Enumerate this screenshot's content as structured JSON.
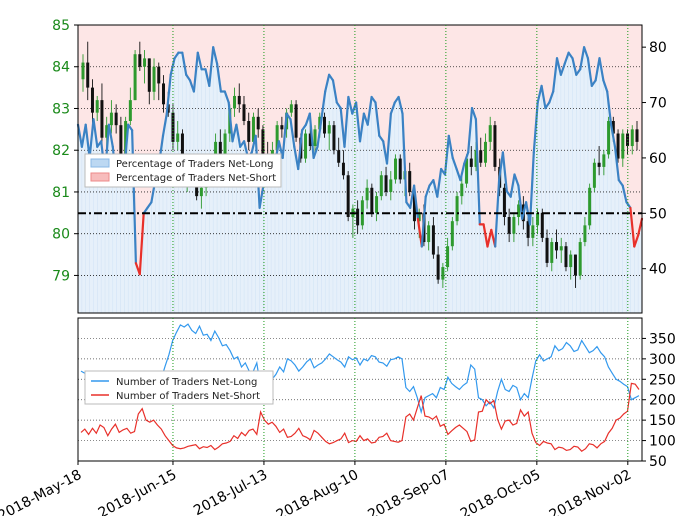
{
  "chart_data": [
    {
      "type": "candlestick+line",
      "panel": "top",
      "left_axis": {
        "range": [
          78.1,
          85.0
        ],
        "ticks": [
          "85",
          "84",
          "83",
          "82",
          "81",
          "80",
          "79"
        ],
        "color": "#1a8a1a"
      },
      "right_axis": {
        "range": [
          32,
          84
        ],
        "ticks": [
          "80",
          "70",
          "60",
          "50",
          "40"
        ]
      },
      "reference_line": 50,
      "legend": {
        "position": "center-left",
        "entries": [
          "Percentage of Traders Net-Long",
          "Percentage of Traders Net-Short"
        ]
      },
      "net_long_pct": [
        66,
        62,
        66,
        60,
        67,
        62,
        63,
        57,
        66,
        62,
        55,
        59,
        58,
        66,
        65,
        41,
        39,
        50,
        51,
        52,
        56,
        59,
        64,
        68,
        75,
        78,
        79,
        79,
        75,
        74,
        72,
        79,
        76,
        76,
        73,
        80,
        77,
        72,
        72,
        70,
        63,
        66,
        62,
        63,
        60,
        61,
        64,
        51,
        55,
        58,
        56,
        59,
        63,
        60,
        68,
        67,
        62,
        58,
        65,
        66,
        68,
        60,
        62,
        67,
        72,
        75,
        74,
        70,
        69,
        62,
        71,
        68,
        70,
        63,
        68,
        66,
        71,
        70,
        64,
        63,
        59,
        68,
        70,
        71,
        68,
        52,
        51,
        55,
        49,
        44,
        53,
        55,
        56,
        53,
        58,
        57,
        64,
        60,
        58,
        56,
        59,
        61,
        69,
        67,
        48,
        48,
        44,
        47,
        44,
        56,
        61,
        54,
        53,
        57,
        55,
        49,
        52,
        48,
        61,
        70,
        73,
        69,
        70,
        72,
        78,
        75,
        77,
        79,
        78,
        75,
        76,
        80,
        78,
        73,
        74,
        78,
        74,
        72,
        66,
        62,
        56,
        55,
        52,
        51,
        44,
        46,
        49
      ],
      "candles": [
        [
          83.7,
          84.3,
          83.4,
          84.1
        ],
        [
          84.1,
          84.6,
          83.2,
          83.5
        ],
        [
          83.5,
          83.7,
          82.6,
          82.9
        ],
        [
          82.9,
          83.3,
          82.7,
          83.2
        ],
        [
          83.2,
          83.6,
          82.0,
          82.3
        ],
        [
          82.3,
          82.8,
          81.9,
          82.6
        ],
        [
          82.6,
          83.2,
          82.4,
          82.9
        ],
        [
          82.9,
          83.1,
          82.4,
          82.6
        ],
        [
          82.6,
          82.8,
          81.6,
          81.7
        ],
        [
          81.7,
          82.8,
          81.6,
          82.7
        ],
        [
          82.7,
          83.5,
          82.6,
          83.2
        ],
        [
          83.2,
          84.4,
          83.2,
          84.3
        ],
        [
          84.3,
          84.6,
          83.9,
          84.0
        ],
        [
          84.0,
          84.4,
          83.6,
          84.2
        ],
        [
          84.2,
          84.2,
          83.1,
          83.4
        ],
        [
          83.4,
          84.2,
          83.2,
          84.0
        ],
        [
          84.0,
          84.1,
          83.2,
          83.6
        ],
        [
          83.6,
          83.8,
          82.9,
          83.1
        ],
        [
          83.1,
          83.4,
          82.8,
          82.9
        ],
        [
          82.9,
          83.1,
          82.0,
          82.2
        ],
        [
          82.2,
          82.7,
          82.0,
          82.4
        ],
        [
          82.4,
          82.5,
          81.4,
          81.5
        ],
        [
          81.5,
          81.9,
          81.0,
          81.6
        ],
        [
          81.6,
          81.9,
          81.2,
          81.4
        ],
        [
          81.4,
          81.9,
          80.8,
          80.9
        ],
        [
          80.9,
          81.2,
          80.6,
          81.1
        ],
        [
          81.1,
          81.6,
          80.9,
          81.3
        ],
        [
          81.3,
          81.8,
          81.2,
          81.6
        ],
        [
          81.6,
          82.4,
          81.5,
          82.2
        ],
        [
          82.2,
          82.5,
          81.7,
          81.9
        ],
        [
          81.9,
          82.5,
          81.8,
          82.4
        ],
        [
          82.4,
          83.1,
          82.2,
          83.0
        ],
        [
          83.0,
          83.5,
          82.8,
          83.3
        ],
        [
          83.3,
          83.6,
          82.9,
          83.1
        ],
        [
          83.1,
          83.3,
          82.6,
          82.7
        ],
        [
          82.7,
          82.9,
          82.0,
          82.2
        ],
        [
          82.2,
          82.9,
          82.1,
          82.8
        ],
        [
          82.8,
          83.0,
          82.3,
          82.5
        ],
        [
          82.5,
          82.6,
          81.8,
          81.9
        ],
        [
          81.9,
          82.2,
          81.5,
          81.6
        ],
        [
          81.6,
          82.2,
          81.5,
          82.0
        ],
        [
          82.0,
          82.7,
          81.9,
          82.6
        ],
        [
          82.6,
          82.8,
          82.3,
          82.5
        ],
        [
          82.5,
          83.0,
          82.3,
          82.9
        ],
        [
          82.9,
          83.2,
          82.8,
          83.1
        ],
        [
          83.1,
          83.2,
          82.2,
          82.3
        ],
        [
          82.3,
          82.4,
          81.7,
          81.8
        ],
        [
          81.8,
          82.5,
          81.7,
          82.4
        ],
        [
          82.4,
          82.6,
          82.0,
          82.1
        ],
        [
          82.1,
          82.6,
          81.9,
          82.5
        ],
        [
          82.5,
          82.9,
          82.3,
          82.8
        ],
        [
          82.8,
          82.9,
          82.3,
          82.4
        ],
        [
          82.4,
          82.7,
          82.0,
          82.6
        ],
        [
          82.6,
          82.7,
          81.9,
          82.0
        ],
        [
          82.0,
          82.3,
          81.6,
          81.7
        ],
        [
          81.7,
          82.0,
          81.3,
          81.4
        ],
        [
          81.4,
          81.5,
          80.3,
          80.4
        ],
        [
          80.4,
          80.7,
          79.9,
          80.6
        ],
        [
          80.6,
          80.8,
          80.0,
          80.2
        ],
        [
          80.2,
          80.9,
          80.1,
          80.8
        ],
        [
          80.8,
          81.3,
          80.6,
          81.1
        ],
        [
          81.1,
          81.2,
          80.4,
          80.5
        ],
        [
          80.5,
          81.0,
          80.3,
          80.9
        ],
        [
          80.9,
          81.5,
          80.8,
          81.4
        ],
        [
          81.4,
          81.6,
          80.9,
          81.0
        ],
        [
          81.0,
          81.5,
          80.8,
          81.3
        ],
        [
          81.3,
          81.9,
          81.2,
          81.8
        ],
        [
          81.8,
          81.9,
          81.2,
          81.3
        ],
        [
          81.3,
          81.6,
          80.9,
          81.5
        ],
        [
          81.5,
          81.7,
          80.9,
          81.0
        ],
        [
          81.0,
          81.1,
          80.1,
          80.3
        ],
        [
          80.3,
          80.6,
          79.9,
          80.5
        ],
        [
          80.5,
          80.7,
          79.7,
          79.8
        ],
        [
          79.8,
          80.3,
          79.6,
          80.2
        ],
        [
          80.2,
          80.4,
          79.4,
          79.5
        ],
        [
          79.5,
          79.7,
          78.8,
          78.9
        ],
        [
          78.9,
          79.3,
          78.7,
          79.2
        ],
        [
          79.2,
          79.9,
          79.1,
          79.7
        ],
        [
          79.7,
          80.4,
          79.6,
          80.3
        ],
        [
          80.3,
          81.0,
          80.2,
          80.9
        ],
        [
          80.9,
          81.4,
          80.7,
          81.2
        ],
        [
          81.2,
          81.9,
          81.1,
          81.8
        ],
        [
          81.8,
          82.1,
          81.4,
          81.6
        ],
        [
          81.6,
          82.2,
          81.5,
          82.0
        ],
        [
          82.0,
          82.3,
          81.6,
          81.7
        ],
        [
          81.7,
          82.4,
          81.6,
          82.2
        ],
        [
          82.2,
          82.8,
          82.0,
          82.6
        ],
        [
          82.6,
          82.7,
          81.5,
          81.6
        ],
        [
          81.6,
          81.8,
          80.9,
          81.1
        ],
        [
          81.1,
          81.2,
          80.2,
          80.4
        ],
        [
          80.4,
          80.6,
          79.8,
          80.0
        ],
        [
          80.0,
          80.5,
          79.8,
          80.4
        ],
        [
          80.4,
          80.8,
          80.2,
          80.7
        ],
        [
          80.7,
          80.9,
          80.1,
          80.3
        ],
        [
          80.3,
          80.4,
          79.7,
          79.9
        ],
        [
          79.9,
          80.4,
          79.7,
          80.2
        ],
        [
          80.2,
          80.6,
          80.0,
          80.5
        ],
        [
          80.5,
          80.6,
          79.8,
          79.9
        ],
        [
          79.9,
          80.1,
          79.2,
          79.3
        ],
        [
          79.3,
          79.9,
          79.1,
          79.8
        ],
        [
          79.8,
          80.1,
          79.4,
          79.6
        ],
        [
          79.6,
          79.9,
          79.3,
          79.7
        ],
        [
          79.7,
          79.8,
          79.1,
          79.2
        ],
        [
          79.2,
          79.6,
          78.9,
          79.5
        ],
        [
          79.5,
          79.5,
          78.7,
          79.0
        ],
        [
          79.0,
          79.9,
          78.9,
          79.8
        ],
        [
          79.8,
          80.4,
          79.7,
          80.2
        ],
        [
          80.2,
          81.2,
          80.1,
          81.1
        ],
        [
          81.1,
          81.8,
          81.0,
          81.7
        ],
        [
          81.7,
          82.1,
          81.4,
          81.6
        ],
        [
          81.6,
          82.0,
          81.4,
          81.9
        ],
        [
          81.9,
          82.8,
          81.8,
          82.7
        ],
        [
          82.7,
          82.8,
          82.2,
          82.4
        ],
        [
          82.4,
          82.5,
          81.7,
          81.8
        ],
        [
          81.8,
          82.5,
          81.6,
          82.4
        ],
        [
          82.4,
          82.5,
          81.9,
          82.1
        ],
        [
          82.1,
          82.6,
          81.9,
          82.5
        ],
        [
          82.5,
          82.7,
          82.0,
          82.2
        ]
      ],
      "net_short_highlights": [
        [
          15,
          17
        ],
        [
          48,
          49
        ],
        [
          103,
          108
        ],
        [
          120,
          122
        ],
        [
          128,
          132
        ],
        [
          170,
          175
        ]
      ]
    },
    {
      "type": "line",
      "panel": "bottom",
      "y_range": [
        50,
        400
      ],
      "yticks": [
        "350",
        "300",
        "250",
        "200",
        "150",
        "100",
        "50"
      ],
      "xticks": [
        "2018-May-18",
        "2018-Jun-15",
        "2018-Jul-13",
        "2018-Aug-10",
        "2018-Sep-07",
        "2018-Oct-05",
        "2018-Nov-02"
      ],
      "legend": {
        "position": "center-left",
        "entries": [
          "Number of Traders Net-Long",
          "Number of Traders Net-Short"
        ]
      },
      "series": [
        {
          "name": "Number of Traders Net-Long",
          "color": "#3399ee",
          "values": [
            270,
            265,
            255,
            262,
            248,
            240,
            232,
            255,
            258,
            240,
            225,
            230,
            220,
            225,
            240,
            250,
            235,
            242,
            228,
            225,
            230,
            252,
            282,
            310,
            345,
            365,
            383,
            378,
            385,
            370,
            362,
            380,
            358,
            360,
            345,
            368,
            352,
            332,
            335,
            320,
            300,
            305,
            280,
            290,
            270,
            268,
            290,
            230,
            245,
            258,
            250,
            262,
            280,
            268,
            300,
            295,
            285,
            270,
            280,
            292,
            300,
            278,
            285,
            290,
            300,
            312,
            305,
            298,
            292,
            280,
            305,
            298,
            302,
            285,
            300,
            295,
            308,
            305,
            292,
            290,
            282,
            298,
            300,
            305,
            300,
            230,
            220,
            232,
            205,
            170,
            205,
            210,
            215,
            205,
            230,
            225,
            255,
            240,
            232,
            225,
            235,
            242,
            285,
            275,
            205,
            200,
            185,
            195,
            180,
            220,
            250,
            225,
            220,
            235,
            230,
            200,
            215,
            205,
            252,
            295,
            310,
            295,
            300,
            305,
            332,
            320,
            325,
            340,
            332,
            318,
            322,
            345,
            330,
            315,
            320,
            330,
            315,
            305,
            280,
            265,
            250,
            245,
            238,
            232,
            200,
            205,
            210
          ]
        },
        {
          "name": "Number of Traders Net-Short",
          "color": "#e8302a",
          "values": [
            120,
            128,
            115,
            130,
            118,
            138,
            132,
            112,
            128,
            140,
            120,
            126,
            130,
            118,
            122,
            165,
            178,
            150,
            145,
            150,
            138,
            128,
            112,
            100,
            88,
            82,
            80,
            82,
            86,
            88,
            90,
            80,
            85,
            83,
            88,
            78,
            84,
            92,
            94,
            98,
            112,
            105,
            120,
            112,
            125,
            128,
            115,
            170,
            150,
            140,
            145,
            135,
            120,
            128,
            108,
            110,
            118,
            130,
            112,
            108,
            102,
            125,
            118,
            108,
            98,
            92,
            95,
            100,
            104,
            118,
            95,
            100,
            98,
            112,
            100,
            104,
            94,
            96,
            108,
            110,
            118,
            100,
            98,
            96,
            100,
            158,
            165,
            150,
            180,
            210,
            160,
            158,
            152,
            160,
            135,
            140,
            115,
            124,
            132,
            138,
            130,
            122,
            98,
            102,
            170,
            172,
            200,
            190,
            198,
            152,
            128,
            148,
            150,
            138,
            142,
            175,
            160,
            170,
            118,
            95,
            88,
            98,
            94,
            92,
            78,
            84,
            82,
            76,
            78,
            86,
            84,
            74,
            80,
            92,
            90,
            82,
            92,
            98,
            118,
            130,
            150,
            155,
            165,
            172,
            240,
            238,
            225
          ]
        }
      ]
    }
  ]
}
